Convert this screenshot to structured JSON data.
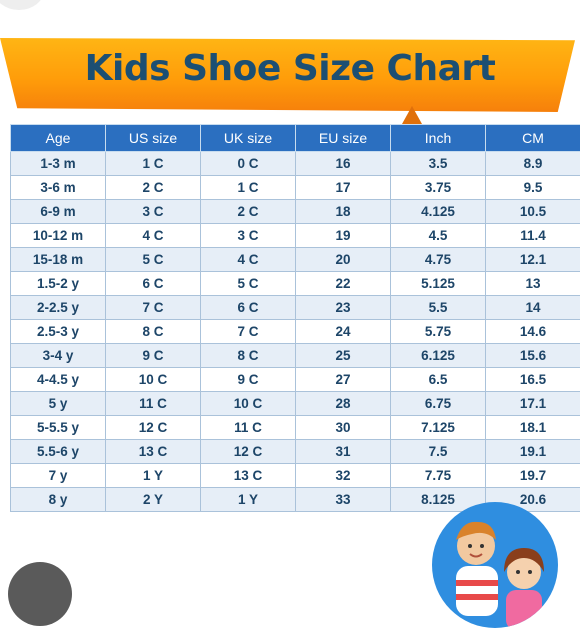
{
  "title": "Kids Shoe Size Chart",
  "colors": {
    "banner": "#ff9d0a",
    "title": "#1c4f73",
    "header_bg": "#2b6fc0",
    "row_alt": "#e6eef7",
    "cell_text": "#1d4568"
  },
  "table": {
    "headers": [
      "Age",
      "US size",
      "UK size",
      "EU size",
      "Inch",
      "CM"
    ],
    "rows": [
      [
        "1-3 m",
        "1 C",
        "0 C",
        "16",
        "3.5",
        "8.9"
      ],
      [
        "3-6 m",
        "2 C",
        "1 C",
        "17",
        "3.75",
        "9.5"
      ],
      [
        "6-9 m",
        "3 C",
        "2 C",
        "18",
        "4.125",
        "10.5"
      ],
      [
        "10-12 m",
        "4 C",
        "3 C",
        "19",
        "4.5",
        "11.4"
      ],
      [
        "15-18 m",
        "5 C",
        "4 C",
        "20",
        "4.75",
        "12.1"
      ],
      [
        "1.5-2 y",
        "6 C",
        "5 C",
        "22",
        "5.125",
        "13"
      ],
      [
        "2-2.5 y",
        "7 C",
        "6 C",
        "23",
        "5.5",
        "14"
      ],
      [
        "2.5-3 y",
        "8 C",
        "7 C",
        "24",
        "5.75",
        "14.6"
      ],
      [
        "3-4 y",
        "9 C",
        "8 C",
        "25",
        "6.125",
        "15.6"
      ],
      [
        "4-4.5 y",
        "10 C",
        "9 C",
        "27",
        "6.5",
        "16.5"
      ],
      [
        "5 y",
        "11 C",
        "10 C",
        "28",
        "6.75",
        "17.1"
      ],
      [
        "5-5.5 y",
        "12 C",
        "11 C",
        "30",
        "7.125",
        "18.1"
      ],
      [
        "5.5-6 y",
        "13 C",
        "12 C",
        "31",
        "7.5",
        "19.1"
      ],
      [
        "7 y",
        "1 Y",
        "13 C",
        "32",
        "7.75",
        "19.7"
      ],
      [
        "8 y",
        "2 Y",
        "1 Y",
        "33",
        "8.125",
        "20.6"
      ]
    ]
  }
}
